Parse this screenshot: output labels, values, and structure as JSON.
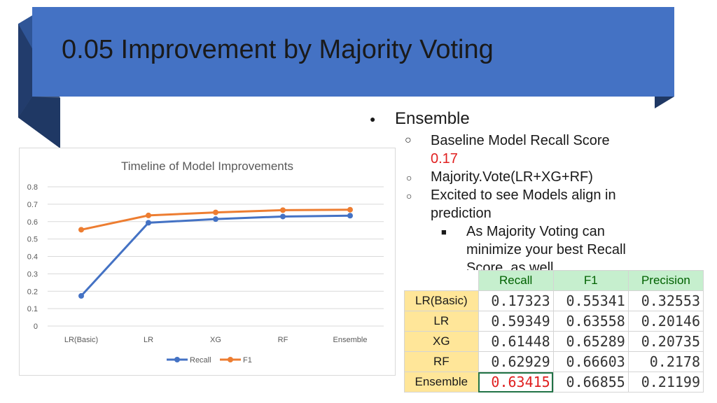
{
  "slide": {
    "title": "0.05 Improvement by Majority Voting",
    "banner_color": "#4472c4"
  },
  "bullets": {
    "level1": {
      "marker": "●",
      "text": "Ensemble"
    },
    "items": [
      {
        "marker": "○",
        "text": "Baseline Model Recall Score"
      },
      {
        "text": "0.17",
        "color": "#e02020"
      },
      {
        "marker": "○",
        "text": "Majority.Vote(LR+XG+RF)"
      },
      {
        "marker": "○",
        "text": "Excited to see Models align in"
      },
      {
        "text": "prediction"
      },
      {
        "marker": "■",
        "text": "As Majority Voting can"
      },
      {
        "text": "minimize your best Recall"
      },
      {
        "text": "Score, as well"
      }
    ]
  },
  "chart_data": {
    "type": "line",
    "title": "Timeline of Model Improvements",
    "categories": [
      "LR(Basic)",
      "LR",
      "XG",
      "RF",
      "Ensemble"
    ],
    "series": [
      {
        "name": "Recall",
        "color": "#4472c4",
        "values": [
          0.17323,
          0.59349,
          0.61448,
          0.62929,
          0.63415
        ]
      },
      {
        "name": "F1",
        "color": "#ed7d31",
        "values": [
          0.55341,
          0.63558,
          0.65289,
          0.66603,
          0.66855
        ]
      }
    ],
    "ylim": [
      0,
      0.8
    ],
    "yticks": [
      "0",
      "0.1",
      "0.2",
      "0.3",
      "0.4",
      "0.5",
      "0.6",
      "0.7",
      "0.8"
    ],
    "grid": true,
    "legend": "bottom"
  },
  "table": {
    "columns": [
      "Recall",
      "F1",
      "Precision"
    ],
    "rows": [
      {
        "label": "LR(Basic)",
        "values": [
          "0.17323",
          "0.55341",
          "0.32553"
        ]
      },
      {
        "label": "LR",
        "values": [
          "0.59349",
          "0.63558",
          "0.20146"
        ]
      },
      {
        "label": "XG",
        "values": [
          "0.61448",
          "0.65289",
          "0.20735"
        ]
      },
      {
        "label": "RF",
        "values": [
          "0.62929",
          "0.66603",
          "0.2178"
        ]
      },
      {
        "label": "Ensemble",
        "values": [
          "0.63415",
          "0.66855",
          "0.21199"
        ]
      }
    ],
    "highlight_color": "#e02020"
  }
}
